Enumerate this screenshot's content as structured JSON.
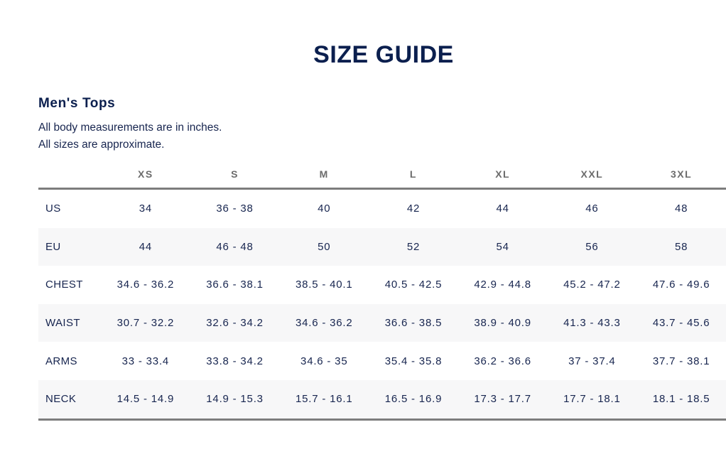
{
  "title": "SIZE GUIDE",
  "section": {
    "title": "Men's Tops",
    "notes": [
      "All body measurements are in inches.",
      "All sizes are approximate."
    ]
  },
  "table": {
    "columns": [
      "XS",
      "S",
      "M",
      "L",
      "XL",
      "XXL",
      "3XL"
    ],
    "rows": [
      {
        "label": "US",
        "values": [
          "34",
          "36 - 38",
          "40",
          "42",
          "44",
          "46",
          "48"
        ]
      },
      {
        "label": "EU",
        "values": [
          "44",
          "46 - 48",
          "50",
          "52",
          "54",
          "56",
          "58"
        ]
      },
      {
        "label": "CHEST",
        "values": [
          "34.6 - 36.2",
          "36.6 - 38.1",
          "38.5 - 40.1",
          "40.5 - 42.5",
          "42.9 - 44.8",
          "45.2 - 47.2",
          "47.6 - 49.6"
        ]
      },
      {
        "label": "WAIST",
        "values": [
          "30.7 - 32.2",
          "32.6 - 34.2",
          "34.6 - 36.2",
          "36.6 - 38.5",
          "38.9 - 40.9",
          "41.3 - 43.3",
          "43.7 - 45.6"
        ]
      },
      {
        "label": "ARMS",
        "values": [
          "33 - 33.4",
          "33.8 - 34.2",
          "34.6 - 35",
          "35.4 - 35.8",
          "36.2 - 36.6",
          "37 - 37.4",
          "37.7 - 38.1"
        ]
      },
      {
        "label": "NECK",
        "values": [
          "14.5 - 14.9",
          "14.9 - 15.3",
          "15.7 - 16.1",
          "16.5 - 16.9",
          "17.3 - 17.7",
          "17.7 - 18.1",
          "18.1 - 18.5"
        ]
      }
    ]
  },
  "colors": {
    "heading": "#0b1f4e",
    "text": "#17254f",
    "header_text": "#6b6b6b",
    "rule": "#7d7d7d",
    "stripe": "#f7f7f8"
  }
}
